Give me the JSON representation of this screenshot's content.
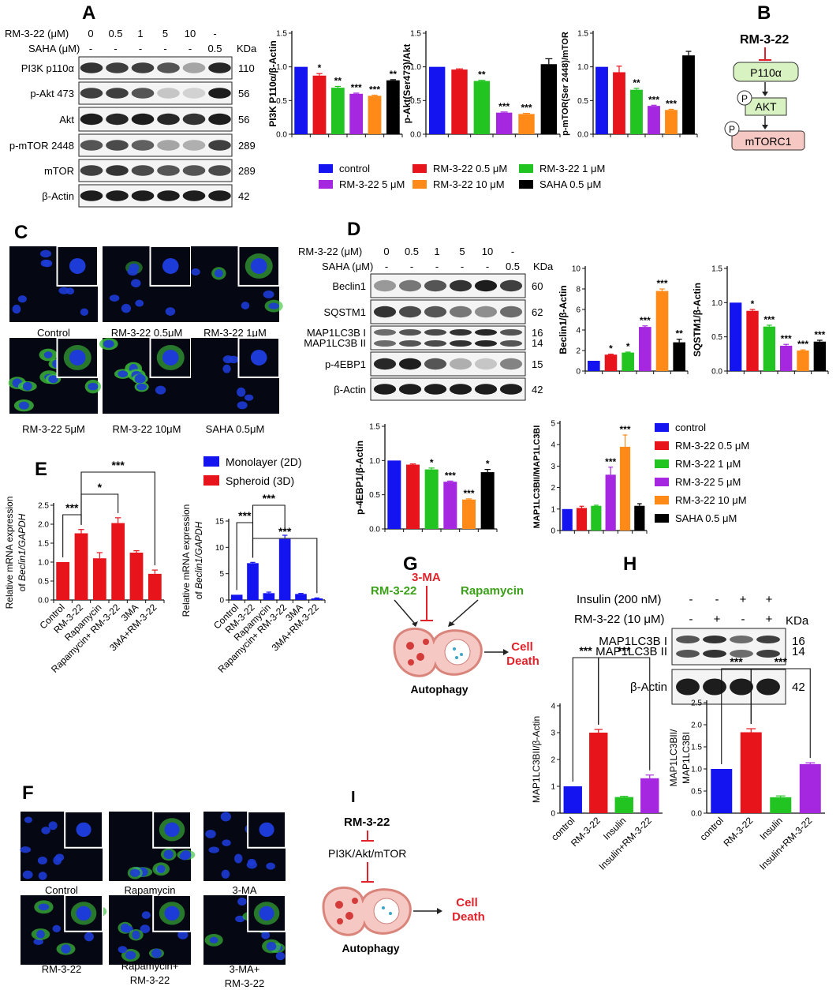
{
  "panel_letters": [
    "A",
    "B",
    "C",
    "D",
    "E",
    "F",
    "G",
    "H",
    "I"
  ],
  "colors": {
    "control": "#1414f0",
    "rm05": "#e8141c",
    "rm1": "#22c422",
    "rm5": "#a528e0",
    "rm10": "#ff8a18",
    "saha": "#000000",
    "cell_blue": "#1d3bd6",
    "cell_green": "#3ec43e",
    "diagram_green_fill": "#d9f2c2",
    "diagram_pink_fill": "#f6c8c4",
    "inhibit_red": "#e2222a",
    "label_green": "#3aa018",
    "death_red": "#e2222a"
  },
  "panelA": {
    "conditions": {
      "rm_label": "RM-3-22 (μM)",
      "rm_values": [
        "0",
        "0.5",
        "1",
        "5",
        "10",
        "-"
      ],
      "saha_label": "SAHA (μM)",
      "saha_values": [
        "-",
        "-",
        "-",
        "-",
        "-",
        "0.5"
      ],
      "kda_label": "KDa"
    },
    "blots": [
      {
        "name": "PI3K p110α",
        "kda": "110"
      },
      {
        "name": "p-Akt 473",
        "kda": "56"
      },
      {
        "name": "Akt",
        "kda": "56"
      },
      {
        "name": "p-mTOR 2448",
        "kda": "289"
      },
      {
        "name": "mTOR",
        "kda": "289"
      },
      {
        "name": "β-Actin",
        "kda": "42"
      }
    ],
    "legend": [
      "control",
      "RM-3-22 0.5 μM",
      "RM-3-22 1 μM",
      "RM-3-22 5 μM",
      "RM-3-22 10 μM",
      "SAHA 0.5 μM"
    ]
  },
  "panelB": {
    "top": "RM-3-22",
    "node1": "P110α",
    "node2": "AKT",
    "node3": "mTORC1",
    "phospho": "P"
  },
  "panelC": {
    "captions": [
      "Control",
      "RM-3-22 0.5μM",
      "RM-3-22 1μM",
      "RM-3-22 5μM",
      "RM-3-22 10μM",
      "SAHA 0.5μM"
    ]
  },
  "panelD": {
    "conditions": {
      "rm_label": "RM-3-22 (μM)",
      "rm_values": [
        "0",
        "0.5",
        "1",
        "5",
        "10",
        "-"
      ],
      "saha_label": "SAHA (μM)",
      "saha_values": [
        "-",
        "-",
        "-",
        "-",
        "-",
        "0.5"
      ],
      "kda_label": "KDa"
    },
    "blots": [
      {
        "name": "Beclin1",
        "kda": "60"
      },
      {
        "name": "SQSTM1",
        "kda": "62"
      },
      {
        "name": "MAP1LC3B I",
        "kda": "16"
      },
      {
        "name": "MAP1LC3B II",
        "kda": "14"
      },
      {
        "name": "p-4EBP1",
        "kda": "15"
      },
      {
        "name": "β-Actin",
        "kda": "42"
      }
    ],
    "legend": [
      "control",
      "RM-3-22 0.5 μM",
      "RM-3-22 1 μM",
      "RM-3-22 5 μM",
      "RM-3-22 10 μM",
      "SAHA 0.5 μM"
    ]
  },
  "panelE": {
    "legend": [
      "Monolayer (2D)",
      "Spheroid (3D)"
    ]
  },
  "panelF": {
    "captions": [
      "Control",
      "Rapamycin",
      "3-MA",
      "RM-3-22",
      "Rapamycin+",
      "RM-3-22",
      "3-MA+",
      "RM-3-22"
    ]
  },
  "panelG": {
    "rm": "RM-3-22",
    "ma": "3-MA",
    "rapa": "Rapamycin",
    "death1": "Cell",
    "death2": "Death",
    "auto": "Autophagy"
  },
  "panelH": {
    "insulin_label": "Insulin (200 nM)",
    "insulin_values": [
      "-",
      "-",
      "+",
      "+"
    ],
    "rm_label": "RM-3-22 (10 μM)",
    "rm_values": [
      "-",
      "+",
      "-",
      "+"
    ],
    "kda_label": "KDa",
    "blots": [
      {
        "name": "MAP1LC3B I",
        "kda": "16"
      },
      {
        "name": "MAP1LC3B II",
        "kda": "14"
      },
      {
        "name": "β-Actin",
        "kda": "42"
      }
    ]
  },
  "panelI": {
    "rm": "RM-3-22",
    "pathway": "PI3K/Akt/mTOR",
    "death1": "Cell",
    "death2": "Death",
    "auto": "Autophagy"
  },
  "chart_data": [
    {
      "id": "A1",
      "type": "bar",
      "ylabel": "PI3K P110α/β-Actin",
      "categories": [
        "control",
        "RM-3-22 0.5 μM",
        "RM-3-22 1 μM",
        "RM-3-22 5 μM",
        "RM-3-22 10 μM",
        "SAHA 0.5 μM"
      ],
      "values": [
        1.0,
        0.87,
        0.69,
        0.6,
        0.57,
        0.8
      ],
      "errors": [
        0,
        0.03,
        0.02,
        0.01,
        0.01,
        0.01
      ],
      "significance": [
        "",
        "*",
        "**",
        "***",
        "***",
        "**"
      ],
      "ylim": [
        0,
        1.5
      ],
      "yticks": [
        0,
        0.5,
        1.0,
        1.5
      ]
    },
    {
      "id": "A2",
      "type": "bar",
      "ylabel": "p-Akt(Ser473)/Akt",
      "categories": [
        "control",
        "RM-3-22 0.5 μM",
        "RM-3-22 1 μM",
        "RM-3-22 5 μM",
        "RM-3-22 10 μM",
        "SAHA 0.5 μM"
      ],
      "values": [
        1.0,
        0.96,
        0.79,
        0.32,
        0.3,
        1.04
      ],
      "errors": [
        0,
        0.01,
        0.01,
        0.01,
        0.01,
        0.08
      ],
      "significance": [
        "",
        "",
        "**",
        "***",
        "***",
        ""
      ],
      "ylim": [
        0,
        1.5
      ],
      "yticks": [
        0,
        0.5,
        1.0,
        1.5
      ]
    },
    {
      "id": "A3",
      "type": "bar",
      "ylabel": "p-mTOR(Ser 2448)/mTOR",
      "categories": [
        "control",
        "RM-3-22 0.5 μM",
        "RM-3-22 1 μM",
        "RM-3-22 5 μM",
        "RM-3-22 10 μM",
        "SAHA 0.5 μM"
      ],
      "values": [
        1.0,
        0.92,
        0.66,
        0.42,
        0.36,
        1.17
      ],
      "errors": [
        0,
        0.09,
        0.02,
        0.01,
        0.01,
        0.06
      ],
      "significance": [
        "",
        "",
        "**",
        "***",
        "***",
        ""
      ],
      "ylim": [
        0,
        1.5
      ],
      "yticks": [
        0,
        0.5,
        1.0,
        1.5
      ]
    },
    {
      "id": "D1",
      "type": "bar",
      "ylabel": "Beclin1/β-Actin",
      "categories": [
        "control",
        "RM-3-22 0.5 μM",
        "RM-3-22 1 μM",
        "RM-3-22 5 μM",
        "RM-3-22 10 μM",
        "SAHA 0.5 μM"
      ],
      "values": [
        1.0,
        1.6,
        1.8,
        4.3,
        7.8,
        2.8
      ],
      "errors": [
        0,
        0.05,
        0.05,
        0.1,
        0.2,
        0.3
      ],
      "significance": [
        "",
        "*",
        "*",
        "***",
        "***",
        "**"
      ],
      "ylim": [
        0,
        10
      ],
      "yticks": [
        0,
        2,
        4,
        6,
        8,
        10
      ]
    },
    {
      "id": "D2",
      "type": "bar",
      "ylabel": "SQSTM1/β-Actin",
      "categories": [
        "control",
        "RM-3-22 0.5 μM",
        "RM-3-22 1 μM",
        "RM-3-22 5 μM",
        "RM-3-22 10 μM",
        "SAHA 0.5 μM"
      ],
      "values": [
        1.0,
        0.88,
        0.65,
        0.37,
        0.3,
        0.43
      ],
      "errors": [
        0,
        0.02,
        0.02,
        0.02,
        0.01,
        0.02
      ],
      "significance": [
        "",
        "*",
        "***",
        "***",
        "***",
        "***"
      ],
      "ylim": [
        0,
        1.5
      ],
      "yticks": [
        0,
        0.5,
        1.0,
        1.5
      ]
    },
    {
      "id": "D3",
      "type": "bar",
      "ylabel": "p-4EBP1/β-Actin",
      "categories": [
        "control",
        "RM-3-22 0.5 μM",
        "RM-3-22 1 μM",
        "RM-3-22 5 μM",
        "RM-3-22 10 μM",
        "SAHA 0.5 μM"
      ],
      "values": [
        1.0,
        0.94,
        0.87,
        0.69,
        0.43,
        0.83
      ],
      "errors": [
        0,
        0.01,
        0.02,
        0.01,
        0.01,
        0.04
      ],
      "significance": [
        "",
        "",
        "*",
        "***",
        "***",
        "*"
      ],
      "ylim": [
        0,
        1.5
      ],
      "yticks": [
        0,
        0.5,
        1.0,
        1.5
      ]
    },
    {
      "id": "D4",
      "type": "bar",
      "ylabel": "MAP1LC3BII/MAP1LC3BI",
      "categories": [
        "control",
        "RM-3-22 0.5 μM",
        "RM-3-22 1 μM",
        "RM-3-22 5 μM",
        "RM-3-22 10 μM",
        "SAHA 0.5 μM"
      ],
      "values": [
        1.0,
        1.05,
        1.15,
        2.6,
        3.9,
        1.15
      ],
      "errors": [
        0,
        0.08,
        0.03,
        0.35,
        0.55,
        0.1
      ],
      "significance": [
        "",
        "",
        "",
        "***",
        "***",
        ""
      ],
      "ylim": [
        0,
        5
      ],
      "yticks": [
        0,
        1,
        2,
        3,
        4,
        5
      ]
    },
    {
      "id": "E1",
      "type": "bar",
      "ylabel": "Relative mRNA expression of Beclin1/GAPDH",
      "series_name": "Spheroid (3D)",
      "categories": [
        "Control",
        "RM-3-22",
        "Rapamycin",
        "Rapamycin+ RM-3-22",
        "3MA",
        "3MA+RM-3-22"
      ],
      "values": [
        1.0,
        1.76,
        1.1,
        2.03,
        1.25,
        0.69
      ],
      "errors": [
        0,
        0.1,
        0.15,
        0.14,
        0.05,
        0.1
      ],
      "ylim": [
        0,
        2.5
      ],
      "yticks": [
        0,
        0.5,
        1.0,
        1.5,
        2.0,
        2.5
      ],
      "brackets": [
        {
          "from": 0,
          "to": 1,
          "label": "***"
        },
        {
          "from": 1,
          "to": 3,
          "label": "*"
        },
        {
          "from": 1,
          "to": 5,
          "label": "***"
        }
      ]
    },
    {
      "id": "E2",
      "type": "bar",
      "ylabel": "Relative mRNA expression of Beclin1/GAPDH",
      "series_name": "Monolayer (2D)",
      "categories": [
        "Control",
        "RM-3-22",
        "Rapamycin",
        "Rapamycin+ RM-3-22",
        "3MA",
        "3MA+RM-3-22"
      ],
      "values": [
        1.0,
        7.0,
        1.3,
        11.6,
        1.15,
        0.3
      ],
      "errors": [
        0,
        0.15,
        0.2,
        0.7,
        0.1,
        0.1
      ],
      "ylim": [
        0,
        15
      ],
      "yticks": [
        0,
        5,
        10,
        15
      ],
      "brackets": [
        {
          "from": 1,
          "to": 3,
          "label": "***"
        },
        {
          "from": 0,
          "to": 1,
          "label": "***"
        },
        {
          "from": 1,
          "to": 5,
          "label": "***"
        }
      ]
    },
    {
      "id": "H1",
      "type": "bar",
      "ylabel": "MAP1LC3BII/β-Actin",
      "categories": [
        "control",
        "RM-3-22",
        "Insulin",
        "Insulin+RM-3-22"
      ],
      "values": [
        1.0,
        3.0,
        0.6,
        1.3
      ],
      "errors": [
        0,
        0.12,
        0.03,
        0.12
      ],
      "ylim": [
        0,
        4
      ],
      "yticks": [
        0,
        1,
        2,
        3,
        4
      ],
      "brackets": [
        {
          "from": 0,
          "to": 1,
          "label": "***"
        },
        {
          "from": 1,
          "to": 3,
          "label": "***"
        }
      ]
    },
    {
      "id": "H2",
      "type": "bar",
      "ylabel": "MAP1LC3BII/ MAP1LC3BI",
      "categories": [
        "control",
        "RM-3-22",
        "Insulin",
        "Insulin+RM-3-22"
      ],
      "values": [
        1.0,
        1.83,
        0.36,
        1.11
      ],
      "errors": [
        0,
        0.08,
        0.03,
        0.03
      ],
      "ylim": [
        0,
        2.5
      ],
      "yticks": [
        0,
        0.5,
        1.0,
        1.5,
        2.0,
        2.5
      ],
      "brackets": [
        {
          "from": 0,
          "to": 1,
          "label": "***"
        },
        {
          "from": 1,
          "to": 3,
          "label": "***"
        }
      ]
    }
  ]
}
